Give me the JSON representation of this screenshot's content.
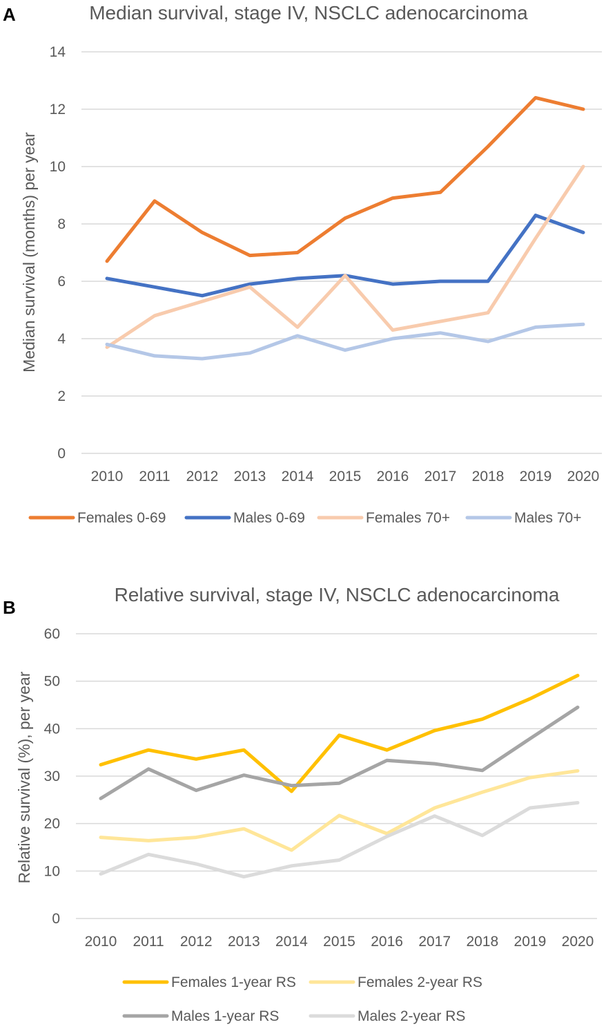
{
  "chart_data": [
    {
      "panel_label": "A",
      "type": "line",
      "title": "Median survival, stage IV, NSCLC adenocarcinoma",
      "xlabel": "",
      "ylabel": "Median survival (months) per year",
      "ylim": [
        0,
        14
      ],
      "yticks": [
        "0",
        "2",
        "4",
        "6",
        "8",
        "10",
        "12",
        "14"
      ],
      "categories": [
        "2010",
        "2011",
        "2012",
        "2013",
        "2014",
        "2015",
        "2016",
        "2017",
        "2018",
        "2019",
        "2020"
      ],
      "grid": true,
      "legend_position": "bottom",
      "series": [
        {
          "name": "Females 0-69",
          "color": "#ED7D31",
          "values": [
            6.7,
            8.8,
            7.7,
            6.9,
            7.0,
            8.2,
            8.9,
            9.1,
            10.7,
            12.4,
            12.0
          ]
        },
        {
          "name": "Males 0-69",
          "color": "#4472C4",
          "values": [
            6.1,
            5.8,
            5.5,
            5.9,
            6.1,
            6.2,
            5.9,
            6.0,
            6.0,
            8.3,
            7.7
          ]
        },
        {
          "name": "Females 70+",
          "color": "#F8CBAD",
          "values": [
            3.7,
            4.8,
            5.3,
            5.8,
            4.4,
            6.2,
            4.3,
            4.6,
            4.9,
            7.5,
            10.0
          ]
        },
        {
          "name": "Males 70+",
          "color": "#B4C7E7",
          "values": [
            3.8,
            3.4,
            3.3,
            3.5,
            4.1,
            3.6,
            4.0,
            4.2,
            3.9,
            4.4,
            4.5
          ]
        }
      ]
    },
    {
      "panel_label": "B",
      "type": "line",
      "title": "Relative survival, stage IV, NSCLC adenocarcinoma",
      "xlabel": "",
      "ylabel": "Relative survival (%), per year",
      "ylim": [
        0,
        60
      ],
      "yticks": [
        "0",
        "10",
        "20",
        "30",
        "40",
        "50",
        "60"
      ],
      "categories": [
        "2010",
        "2011",
        "2012",
        "2013",
        "2014",
        "2015",
        "2016",
        "2017",
        "2018",
        "2019",
        "2020"
      ],
      "grid": true,
      "legend_position": "bottom",
      "series": [
        {
          "name": "Females 1-year RS",
          "color": "#FFC000",
          "values": [
            32.4,
            35.5,
            33.6,
            35.5,
            26.8,
            38.6,
            35.5,
            39.6,
            42.0,
            46.3,
            51.2
          ]
        },
        {
          "name": "Females 2-year RS",
          "color": "#FFE699",
          "values": [
            17.1,
            16.4,
            17.1,
            18.9,
            14.4,
            21.7,
            17.9,
            23.3,
            26.6,
            29.7,
            31.1
          ]
        },
        {
          "name": "Males 1-year RS",
          "color": "#A5A5A5",
          "values": [
            25.3,
            31.5,
            27.0,
            30.2,
            28.0,
            28.5,
            33.3,
            32.6,
            31.2,
            37.9,
            44.5
          ]
        },
        {
          "name": "Males 2-year RS",
          "color": "#DBDBDB",
          "values": [
            9.4,
            13.5,
            11.5,
            8.8,
            11.1,
            12.3,
            17.3,
            21.6,
            17.5,
            23.3,
            24.4
          ]
        }
      ]
    }
  ]
}
